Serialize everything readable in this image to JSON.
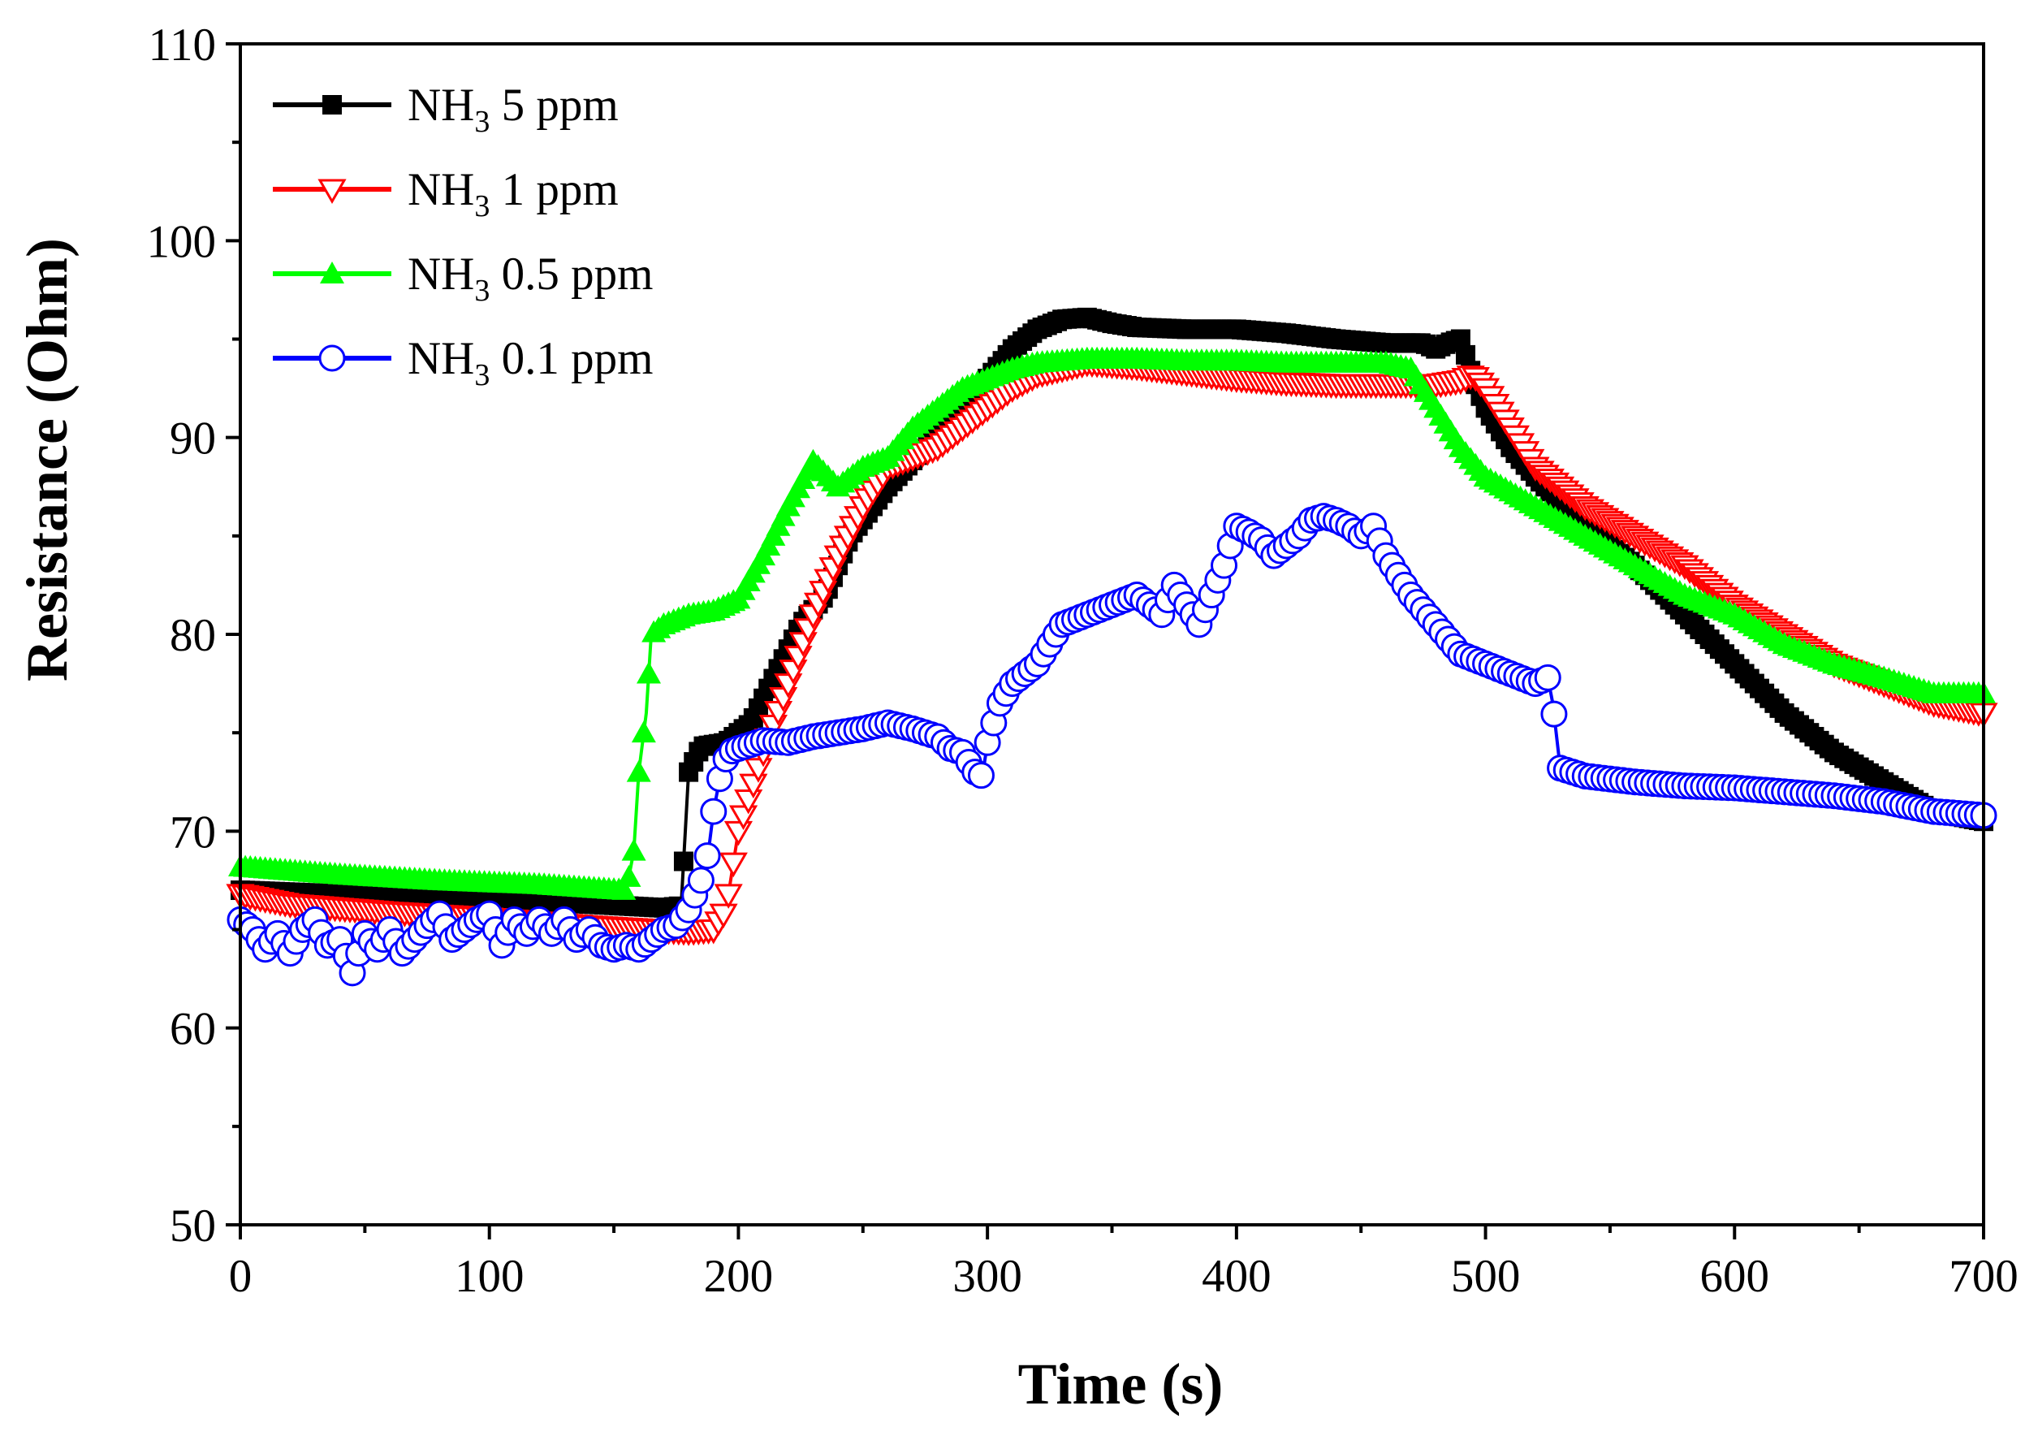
{
  "chart_data": {
    "type": "line",
    "title": "",
    "xlabel": "Time (s)",
    "ylabel": "Resistance (Ohm)",
    "xlim": [
      0,
      700
    ],
    "ylim": [
      50,
      110
    ],
    "xticks": [
      0,
      100,
      200,
      300,
      400,
      500,
      600,
      700
    ],
    "yticks": [
      50,
      60,
      70,
      80,
      90,
      100,
      110
    ],
    "grid": false,
    "legend_position": "top-left",
    "series": [
      {
        "name": "NH3 5 ppm",
        "label_main": "NH",
        "label_sub": "3",
        "label_rest": " 5 ppm",
        "color": "#000000",
        "marker": "filled-square",
        "x": [
          0,
          20,
          60,
          100,
          140,
          170,
          177,
          180,
          185,
          195,
          205,
          215,
          225,
          235,
          245,
          260,
          275,
          290,
          300,
          310,
          320,
          330,
          340,
          350,
          360,
          380,
          400,
          420,
          440,
          460,
          475,
          480,
          485,
          490,
          495,
          500,
          510,
          520,
          540,
          560,
          580,
          600,
          620,
          640,
          660,
          680,
          700
        ],
        "y": [
          67.0,
          66.9,
          66.7,
          66.5,
          66.3,
          66.1,
          66.2,
          73.0,
          74.3,
          74.5,
          75.5,
          78.0,
          80.5,
          82.0,
          85.0,
          87.5,
          89.5,
          91.0,
          93.0,
          94.5,
          95.5,
          96.0,
          96.1,
          95.8,
          95.6,
          95.5,
          95.5,
          95.3,
          95.0,
          94.8,
          94.8,
          94.5,
          94.8,
          95.0,
          93.0,
          91.5,
          89.5,
          88.0,
          85.5,
          83.5,
          81.0,
          78.5,
          76.0,
          74.0,
          72.5,
          71.0,
          70.5
        ]
      },
      {
        "name": "NH3 1 ppm",
        "label_main": "NH",
        "label_sub": "3",
        "label_rest": " 1 ppm",
        "color": "#ff0000",
        "marker": "open-down-triangle",
        "x": [
          0,
          20,
          60,
          100,
          140,
          180,
          190,
          195,
          200,
          210,
          220,
          230,
          240,
          250,
          260,
          270,
          280,
          290,
          300,
          310,
          320,
          340,
          360,
          380,
          400,
          420,
          440,
          460,
          480,
          490,
          495,
          500,
          510,
          520,
          540,
          560,
          580,
          600,
          620,
          640,
          660,
          680,
          700
        ],
        "y": [
          66.8,
          66.3,
          65.9,
          65.6,
          65.2,
          64.9,
          65.0,
          66.0,
          70.0,
          74.0,
          77.5,
          81.0,
          84.0,
          86.5,
          88.5,
          89.0,
          89.5,
          90.5,
          91.5,
          92.5,
          93.2,
          93.8,
          93.6,
          93.3,
          93.0,
          92.8,
          92.7,
          92.7,
          92.7,
          92.9,
          93.2,
          92.5,
          90.5,
          88.5,
          86.5,
          85.0,
          83.5,
          81.5,
          80.0,
          78.5,
          77.5,
          76.5,
          76.0
        ]
      },
      {
        "name": "NH3 0.5 ppm",
        "label_main": "NH",
        "label_sub": "3",
        "label_rest": " 0.5 ppm",
        "color": "#00ff00",
        "marker": "filled-up-triangle",
        "x": [
          0,
          40,
          80,
          120,
          155,
          158,
          160,
          163,
          165,
          170,
          180,
          190,
          200,
          210,
          220,
          230,
          240,
          250,
          260,
          270,
          280,
          290,
          300,
          310,
          320,
          340,
          360,
          380,
          400,
          420,
          440,
          460,
          470,
          480,
          490,
          500,
          520,
          540,
          560,
          580,
          600,
          620,
          640,
          660,
          680,
          700
        ],
        "y": [
          68.2,
          67.8,
          67.5,
          67.3,
          67.0,
          69.0,
          73.0,
          76.0,
          80.0,
          80.5,
          81.0,
          81.2,
          81.8,
          84.0,
          86.5,
          88.8,
          87.5,
          88.5,
          89.0,
          90.5,
          91.5,
          92.5,
          93.0,
          93.5,
          93.8,
          94.0,
          94.0,
          93.9,
          93.9,
          93.8,
          93.8,
          93.8,
          93.5,
          91.5,
          89.5,
          88.0,
          86.5,
          85.0,
          83.5,
          82.0,
          81.0,
          79.5,
          78.5,
          77.8,
          77.0,
          77.0
        ]
      },
      {
        "name": "NH3 0.1 ppm",
        "label_main": "NH",
        "label_sub": "3",
        "label_rest": " 0.1 ppm",
        "color": "#0000ff",
        "marker": "open-circle",
        "x": [
          0,
          5,
          10,
          15,
          20,
          25,
          30,
          35,
          40,
          45,
          50,
          55,
          60,
          65,
          70,
          75,
          80,
          85,
          90,
          95,
          100,
          105,
          110,
          115,
          120,
          125,
          130,
          135,
          140,
          145,
          150,
          155,
          160,
          165,
          170,
          175,
          180,
          185,
          188,
          190,
          193,
          196,
          200,
          210,
          220,
          230,
          240,
          250,
          260,
          270,
          280,
          285,
          290,
          295,
          298,
          300,
          305,
          310,
          320,
          330,
          340,
          350,
          360,
          365,
          370,
          375,
          380,
          385,
          390,
          395,
          400,
          405,
          410,
          415,
          420,
          425,
          430,
          435,
          440,
          445,
          450,
          455,
          460,
          470,
          480,
          490,
          500,
          510,
          520,
          525,
          527,
          530,
          540,
          560,
          580,
          600,
          620,
          640,
          660,
          680,
          700
        ],
        "y": [
          65.5,
          65.0,
          64.0,
          64.8,
          63.8,
          65.0,
          65.5,
          64.2,
          64.5,
          62.8,
          64.8,
          64.0,
          65.0,
          63.8,
          64.5,
          65.2,
          65.8,
          64.5,
          65.0,
          65.5,
          65.8,
          64.2,
          65.5,
          64.8,
          65.5,
          64.8,
          65.5,
          64.5,
          65.0,
          64.2,
          64.0,
          64.2,
          64.0,
          64.5,
          65.0,
          65.2,
          66.0,
          67.5,
          69.0,
          71.0,
          73.0,
          74.0,
          74.2,
          74.6,
          74.5,
          74.8,
          75.0,
          75.2,
          75.5,
          75.2,
          74.8,
          74.2,
          74.0,
          73.0,
          72.8,
          74.5,
          76.5,
          77.5,
          78.5,
          80.5,
          81.0,
          81.5,
          82.0,
          81.5,
          81.0,
          82.5,
          81.5,
          80.5,
          82.0,
          83.5,
          85.5,
          85.2,
          84.8,
          84.0,
          84.5,
          85.0,
          85.8,
          86.0,
          85.8,
          85.5,
          85.0,
          85.5,
          84.0,
          82.0,
          80.5,
          79.0,
          78.5,
          78.0,
          77.5,
          77.8,
          76.5,
          73.2,
          72.8,
          72.5,
          72.3,
          72.2,
          72.0,
          71.8,
          71.5,
          71.0,
          70.8
        ]
      }
    ]
  }
}
